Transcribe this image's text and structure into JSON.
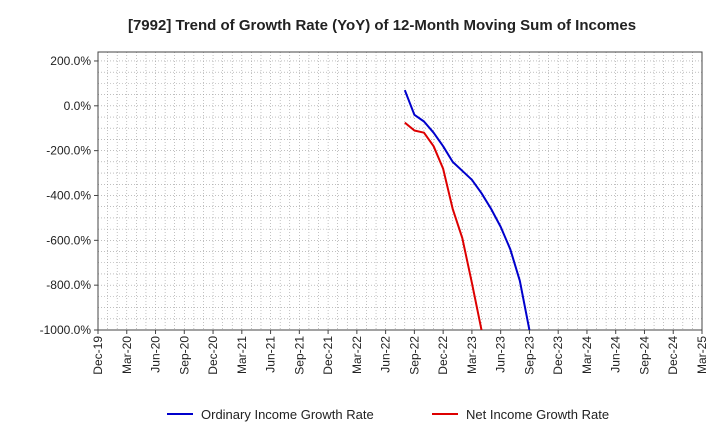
{
  "chart_data": {
    "type": "line",
    "title": "[7992]  Trend of Growth Rate (YoY) of 12-Month Moving Sum of Incomes",
    "xlabel": "",
    "ylabel": "",
    "x_ticks": [
      "Dec-19",
      "Mar-20",
      "Jun-20",
      "Sep-20",
      "Dec-20",
      "Mar-21",
      "Jun-21",
      "Sep-21",
      "Dec-21",
      "Mar-22",
      "Jun-22",
      "Sep-22",
      "Dec-22",
      "Mar-23",
      "Jun-23",
      "Sep-23",
      "Dec-23",
      "Mar-24",
      "Jun-24",
      "Sep-24",
      "Dec-24",
      "Mar-25"
    ],
    "y_ticks": [
      "200.0%",
      "0.0%",
      "-200.0%",
      "-400.0%",
      "-600.0%",
      "-800.0%",
      "-1000.0%"
    ],
    "ylim": [
      -1000,
      240
    ],
    "grid": true,
    "legend": "bottom",
    "series": [
      {
        "name": "Ordinary Income Growth Rate",
        "color": "#0000cc",
        "points": [
          [
            "2022-08",
            70
          ],
          [
            "2022-09",
            -40
          ],
          [
            "2022-10",
            -70
          ],
          [
            "2022-11",
            -120
          ],
          [
            "2022-12",
            -180
          ],
          [
            "2023-01",
            -250
          ],
          [
            "2023-02",
            -290
          ],
          [
            "2023-03",
            -330
          ],
          [
            "2023-04",
            -390
          ],
          [
            "2023-05",
            -460
          ],
          [
            "2023-06",
            -540
          ],
          [
            "2023-07",
            -640
          ],
          [
            "2023-08",
            -780
          ],
          [
            "2023-09",
            -1000
          ]
        ]
      },
      {
        "name": "Net Income Growth Rate",
        "color": "#dd0000",
        "points": [
          [
            "2022-08",
            -75
          ],
          [
            "2022-09",
            -110
          ],
          [
            "2022-10",
            -120
          ],
          [
            "2022-11",
            -180
          ],
          [
            "2022-12",
            -280
          ],
          [
            "2023-01",
            -460
          ],
          [
            "2023-02",
            -590
          ],
          [
            "2023-03",
            -790
          ],
          [
            "2023-04",
            -1000
          ]
        ]
      }
    ]
  }
}
